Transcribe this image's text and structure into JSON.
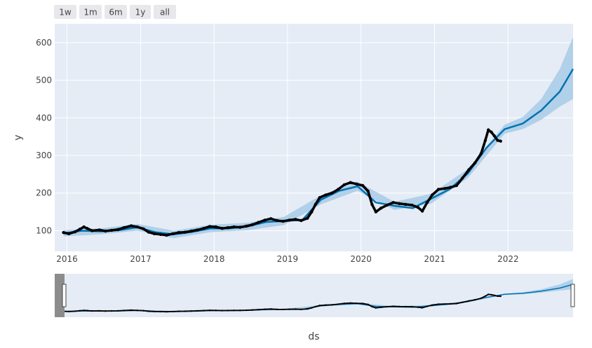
{
  "range_selector": {
    "buttons": [
      "1w",
      "1m",
      "6m",
      "1y",
      "all"
    ],
    "selected": "all"
  },
  "chart_data": {
    "type": "line",
    "xlabel": "ds",
    "ylabel": "y",
    "xlim": [
      "2015-11-01",
      "2022-11-20"
    ],
    "ylim": [
      45,
      650
    ],
    "x_ticks": [
      "2016",
      "2017",
      "2018",
      "2019",
      "2020",
      "2021",
      "2022"
    ],
    "y_ticks": [
      100,
      200,
      300,
      400,
      500,
      600
    ],
    "grid": true,
    "colors": {
      "plot_bg": "#e5ecf6",
      "actual": "#000000",
      "forecast": "#0072b2",
      "uncertainty": "#a8cbe6",
      "rangeslider_mask": "#8c8c8c"
    },
    "series": [
      {
        "role": "actual",
        "mode": "markers",
        "points": [
          [
            "2015-12-15",
            95
          ],
          [
            "2016-01-10",
            92
          ],
          [
            "2016-02-10",
            97
          ],
          [
            "2016-03-05",
            104
          ],
          [
            "2016-03-25",
            110
          ],
          [
            "2016-04-10",
            106
          ],
          [
            "2016-05-05",
            100
          ],
          [
            "2016-06-10",
            102
          ],
          [
            "2016-07-10",
            99
          ],
          [
            "2016-08-10",
            101
          ],
          [
            "2016-09-10",
            103
          ],
          [
            "2016-10-10",
            108
          ],
          [
            "2016-11-15",
            113
          ],
          [
            "2016-12-15",
            110
          ],
          [
            "2017-01-15",
            105
          ],
          [
            "2017-02-10",
            96
          ],
          [
            "2017-03-10",
            92
          ],
          [
            "2017-04-10",
            90
          ],
          [
            "2017-05-10",
            88
          ],
          [
            "2017-06-10",
            92
          ],
          [
            "2017-07-10",
            95
          ],
          [
            "2017-08-10",
            96
          ],
          [
            "2017-09-10",
            99
          ],
          [
            "2017-10-10",
            102
          ],
          [
            "2017-11-10",
            106
          ],
          [
            "2017-12-10",
            111
          ],
          [
            "2018-01-10",
            110
          ],
          [
            "2018-02-10",
            106
          ],
          [
            "2018-03-10",
            108
          ],
          [
            "2018-04-10",
            110
          ],
          [
            "2018-05-10",
            109
          ],
          [
            "2018-06-10",
            112
          ],
          [
            "2018-07-10",
            116
          ],
          [
            "2018-08-10",
            122
          ],
          [
            "2018-09-10",
            128
          ],
          [
            "2018-10-10",
            132
          ],
          [
            "2018-11-10",
            127
          ],
          [
            "2018-12-10",
            125
          ],
          [
            "2019-01-10",
            128
          ],
          [
            "2019-02-10",
            130
          ],
          [
            "2019-03-10",
            127
          ],
          [
            "2019-04-10",
            133
          ],
          [
            "2019-05-01",
            150
          ],
          [
            "2019-05-20",
            170
          ],
          [
            "2019-06-10",
            188
          ],
          [
            "2019-07-10",
            195
          ],
          [
            "2019-08-10",
            200
          ],
          [
            "2019-09-10",
            210
          ],
          [
            "2019-10-10",
            222
          ],
          [
            "2019-11-10",
            228
          ],
          [
            "2019-12-10",
            224
          ],
          [
            "2020-01-10",
            220
          ],
          [
            "2020-02-05",
            205
          ],
          [
            "2020-02-25",
            170
          ],
          [
            "2020-03-15",
            150
          ],
          [
            "2020-04-10",
            160
          ],
          [
            "2020-05-10",
            168
          ],
          [
            "2020-06-10",
            175
          ],
          [
            "2020-07-10",
            172
          ],
          [
            "2020-08-10",
            170
          ],
          [
            "2020-09-10",
            168
          ],
          [
            "2020-10-10",
            162
          ],
          [
            "2020-11-01",
            152
          ],
          [
            "2020-11-25",
            175
          ],
          [
            "2020-12-20",
            195
          ],
          [
            "2021-01-20",
            210
          ],
          [
            "2021-02-20",
            212
          ],
          [
            "2021-03-20",
            215
          ],
          [
            "2021-04-20",
            220
          ],
          [
            "2021-05-20",
            240
          ],
          [
            "2021-06-20",
            262
          ],
          [
            "2021-07-20",
            280
          ],
          [
            "2021-08-20",
            305
          ],
          [
            "2021-09-10",
            340
          ],
          [
            "2021-09-25",
            368
          ],
          [
            "2021-10-10",
            362
          ],
          [
            "2021-10-25",
            352
          ],
          [
            "2021-11-10",
            340
          ],
          [
            "2021-11-25",
            338
          ]
        ]
      },
      {
        "role": "forecast",
        "mode": "lines",
        "points": [
          [
            "2015-12-15",
            93
          ],
          [
            "2016-03-15",
            100
          ],
          [
            "2016-06-15",
            98
          ],
          [
            "2016-09-15",
            101
          ],
          [
            "2016-12-15",
            109
          ],
          [
            "2017-03-15",
            96
          ],
          [
            "2017-06-15",
            90
          ],
          [
            "2017-09-15",
            97
          ],
          [
            "2017-12-15",
            106
          ],
          [
            "2018-03-15",
            106
          ],
          [
            "2018-06-15",
            111
          ],
          [
            "2018-09-15",
            123
          ],
          [
            "2018-12-15",
            126
          ],
          [
            "2019-03-15",
            128
          ],
          [
            "2019-06-15",
            182
          ],
          [
            "2019-09-15",
            206
          ],
          [
            "2019-12-15",
            218
          ],
          [
            "2020-03-15",
            175
          ],
          [
            "2020-06-15",
            166
          ],
          [
            "2020-09-15",
            160
          ],
          [
            "2020-12-15",
            185
          ],
          [
            "2021-03-15",
            210
          ],
          [
            "2021-06-15",
            252
          ],
          [
            "2021-09-15",
            320
          ],
          [
            "2021-12-15",
            370
          ],
          [
            "2022-03-15",
            385
          ],
          [
            "2022-06-15",
            420
          ],
          [
            "2022-09-15",
            470
          ],
          [
            "2022-11-20",
            530
          ]
        ]
      },
      {
        "role": "uncertainty",
        "mode": "band",
        "lower": [
          [
            "2015-12-15",
            85
          ],
          [
            "2016-06-15",
            90
          ],
          [
            "2016-12-15",
            100
          ],
          [
            "2017-06-15",
            80
          ],
          [
            "2017-12-15",
            96
          ],
          [
            "2018-06-15",
            101
          ],
          [
            "2018-12-15",
            115
          ],
          [
            "2019-06-15",
            170
          ],
          [
            "2019-12-15",
            206
          ],
          [
            "2020-06-15",
            155
          ],
          [
            "2020-12-15",
            172
          ],
          [
            "2021-06-15",
            240
          ],
          [
            "2021-12-15",
            358
          ],
          [
            "2022-03-15",
            370
          ],
          [
            "2022-06-15",
            395
          ],
          [
            "2022-09-15",
            430
          ],
          [
            "2022-11-20",
            450
          ]
        ],
        "upper": [
          [
            "2015-12-15",
            101
          ],
          [
            "2016-06-15",
            106
          ],
          [
            "2016-12-15",
            118
          ],
          [
            "2017-06-15",
            100
          ],
          [
            "2017-12-15",
            116
          ],
          [
            "2018-06-15",
            121
          ],
          [
            "2018-12-15",
            137
          ],
          [
            "2019-06-15",
            194
          ],
          [
            "2019-12-15",
            230
          ],
          [
            "2020-06-15",
            177
          ],
          [
            "2020-12-15",
            198
          ],
          [
            "2021-06-15",
            264
          ],
          [
            "2021-12-15",
            382
          ],
          [
            "2022-03-15",
            402
          ],
          [
            "2022-06-15",
            450
          ],
          [
            "2022-09-15",
            530
          ],
          [
            "2022-11-20",
            615
          ]
        ]
      }
    ]
  }
}
